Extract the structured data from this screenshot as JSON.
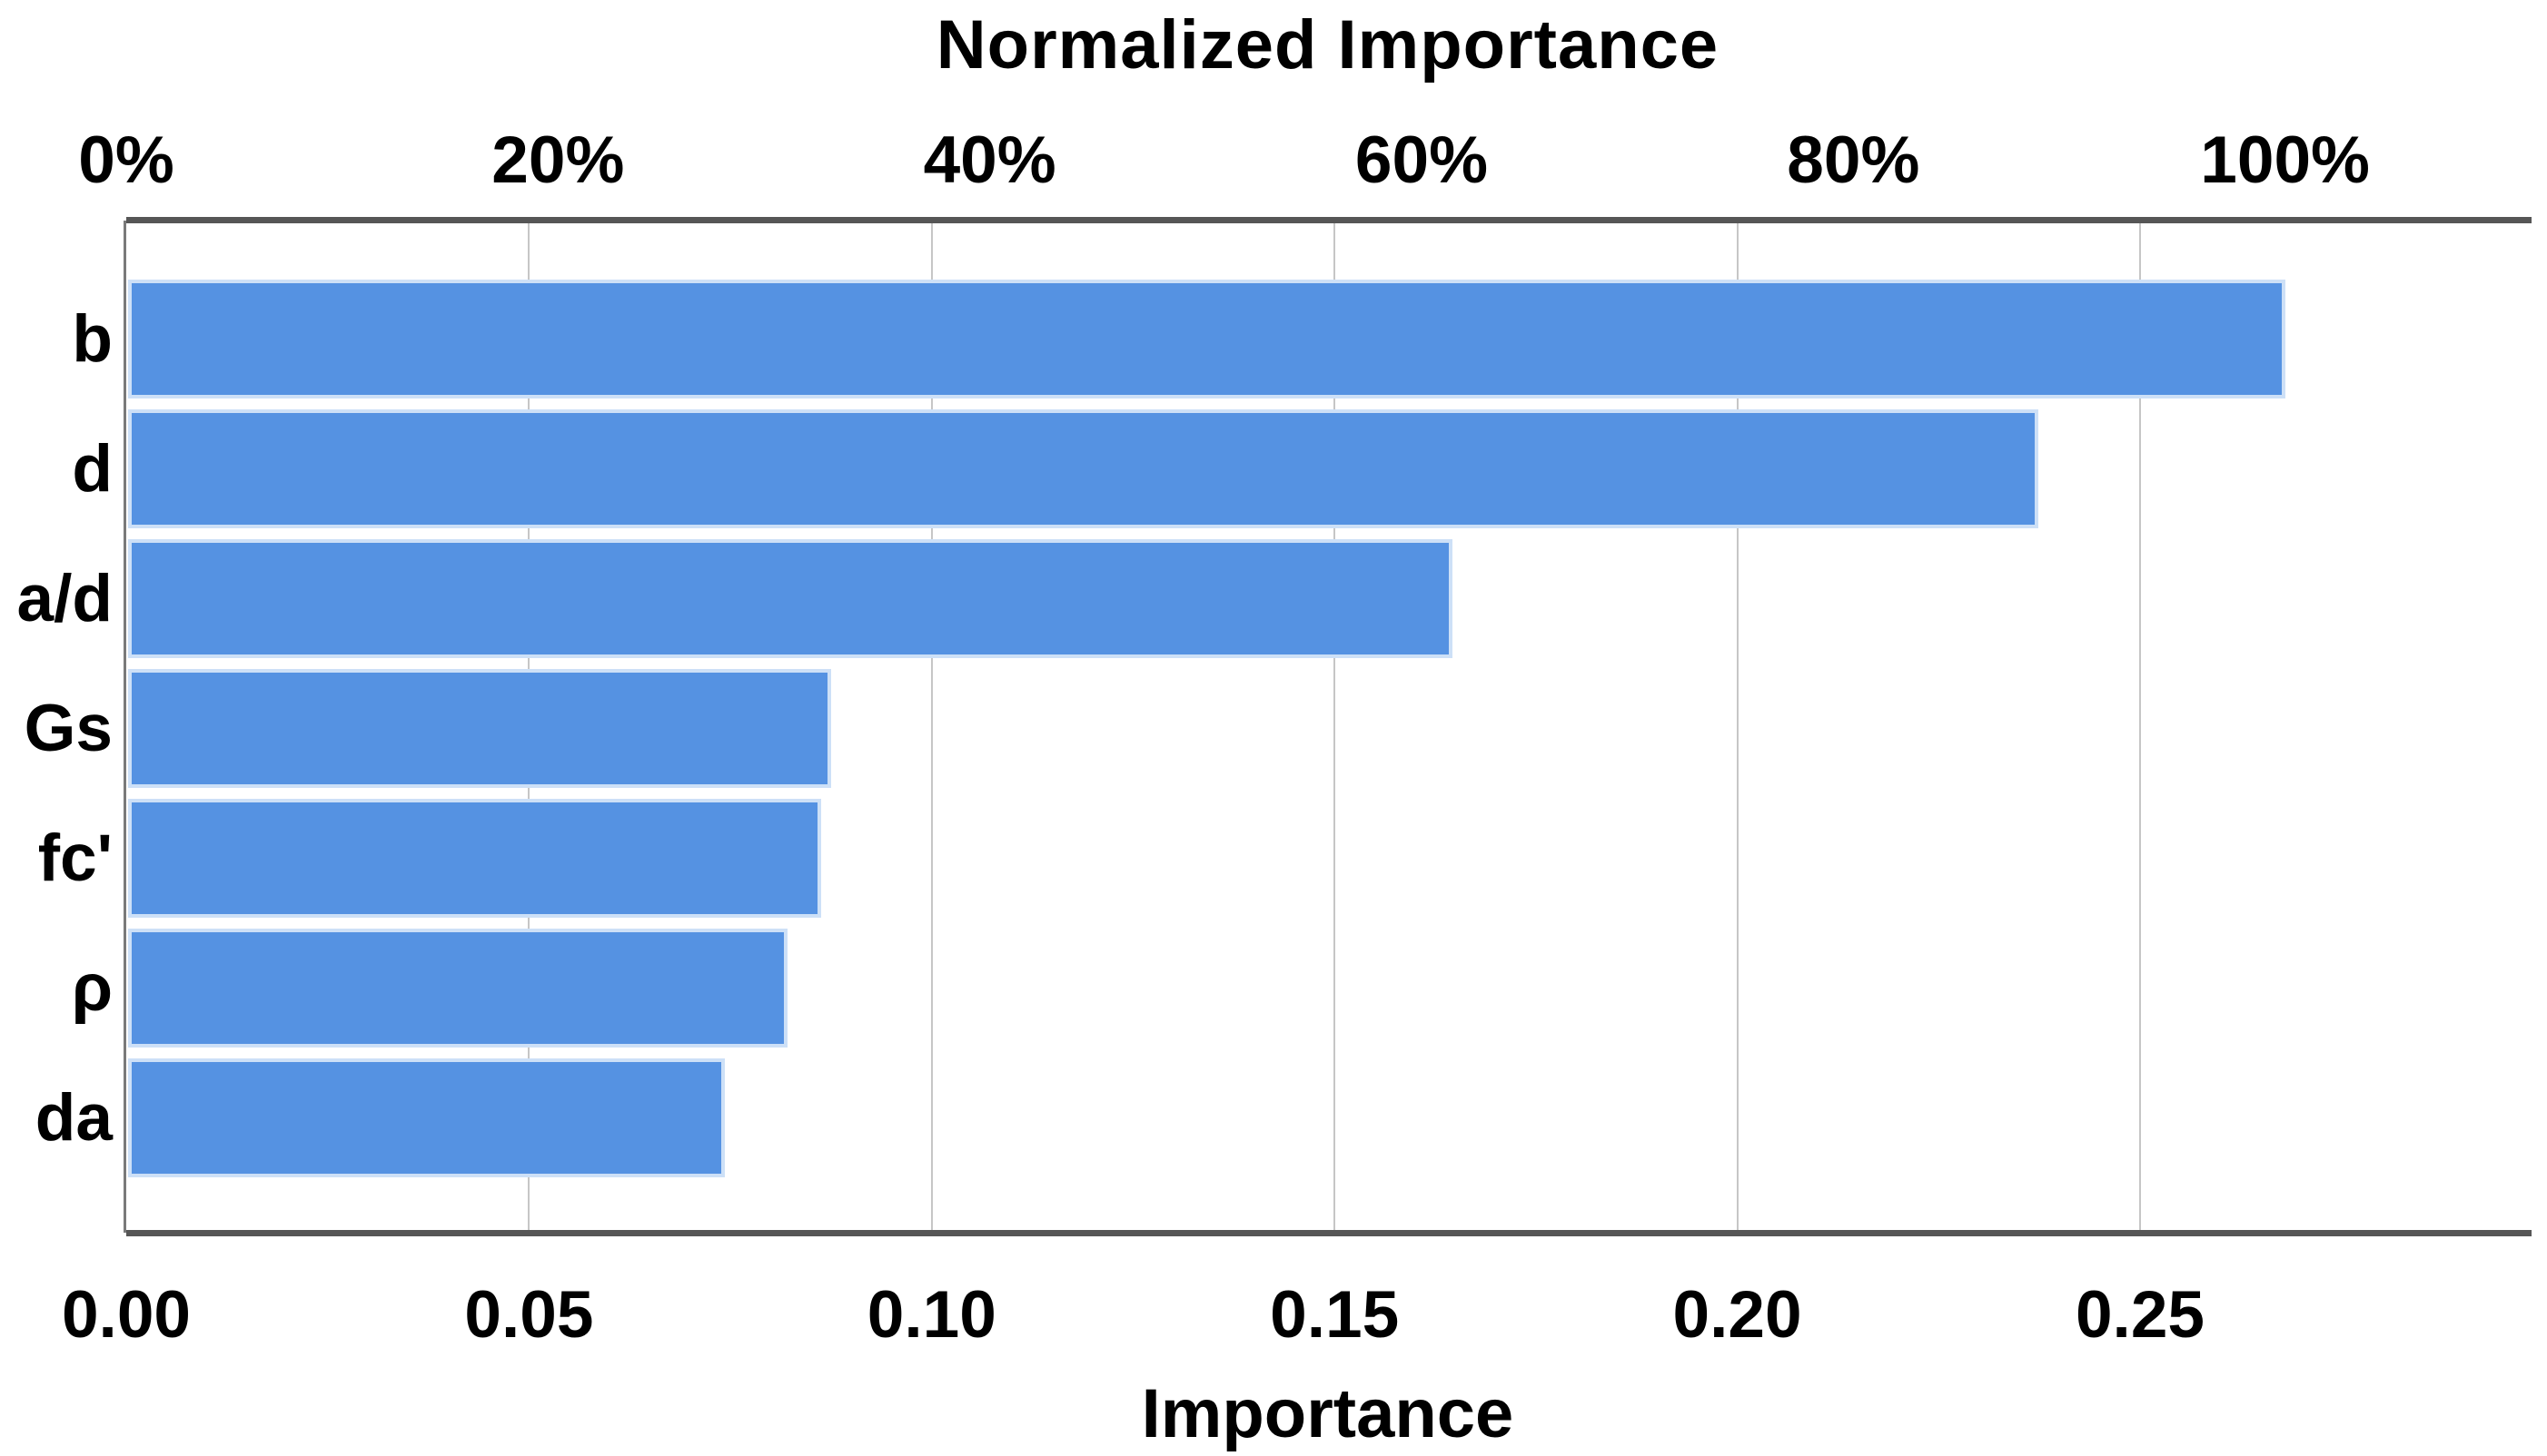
{
  "chart_data": {
    "type": "bar",
    "orientation": "horizontal",
    "title": "Normalized Importance",
    "xlabel": "Importance",
    "categories": [
      "b",
      "d",
      "a/d",
      "Gs",
      "fc'",
      "ρ",
      "da"
    ],
    "values": [
      0.268,
      0.2374,
      0.1646,
      0.0875,
      0.0863,
      0.0821,
      0.0743
    ],
    "series": [
      {
        "name": "Importance",
        "values": [
          0.268,
          0.2374,
          0.1646,
          0.0875,
          0.0863,
          0.0821,
          0.0743
        ]
      },
      {
        "name": "Normalized Importance (%)",
        "values": [
          100,
          88.6,
          61.4,
          32.6,
          32.2,
          30.6,
          27.7
        ]
      }
    ],
    "x_axis_bottom": {
      "label": "Importance",
      "tick_labels": [
        "0.00",
        "0.05",
        "0.10",
        "0.15",
        "0.20",
        "0.25"
      ],
      "tick_values": [
        0.0,
        0.05,
        0.1,
        0.15,
        0.2,
        0.25
      ],
      "range": [
        0,
        0.298
      ]
    },
    "x_axis_top": {
      "label": "Normalized Importance",
      "tick_labels": [
        "0%",
        "20%",
        "40%",
        "60%",
        "80%",
        "100%"
      ],
      "tick_percents": [
        0,
        20,
        40,
        60,
        80,
        100
      ],
      "value_at_100_percent": 0.268
    },
    "grid": "vertical gridlines at 0.05 steps, light gray, on",
    "legend": "none",
    "bar_color": "#5592e2",
    "bar_border_color": "#cde0f7",
    "axis_line_color": "#565656",
    "gridline_color": "#c6c6c6",
    "text_color": "#000000"
  }
}
